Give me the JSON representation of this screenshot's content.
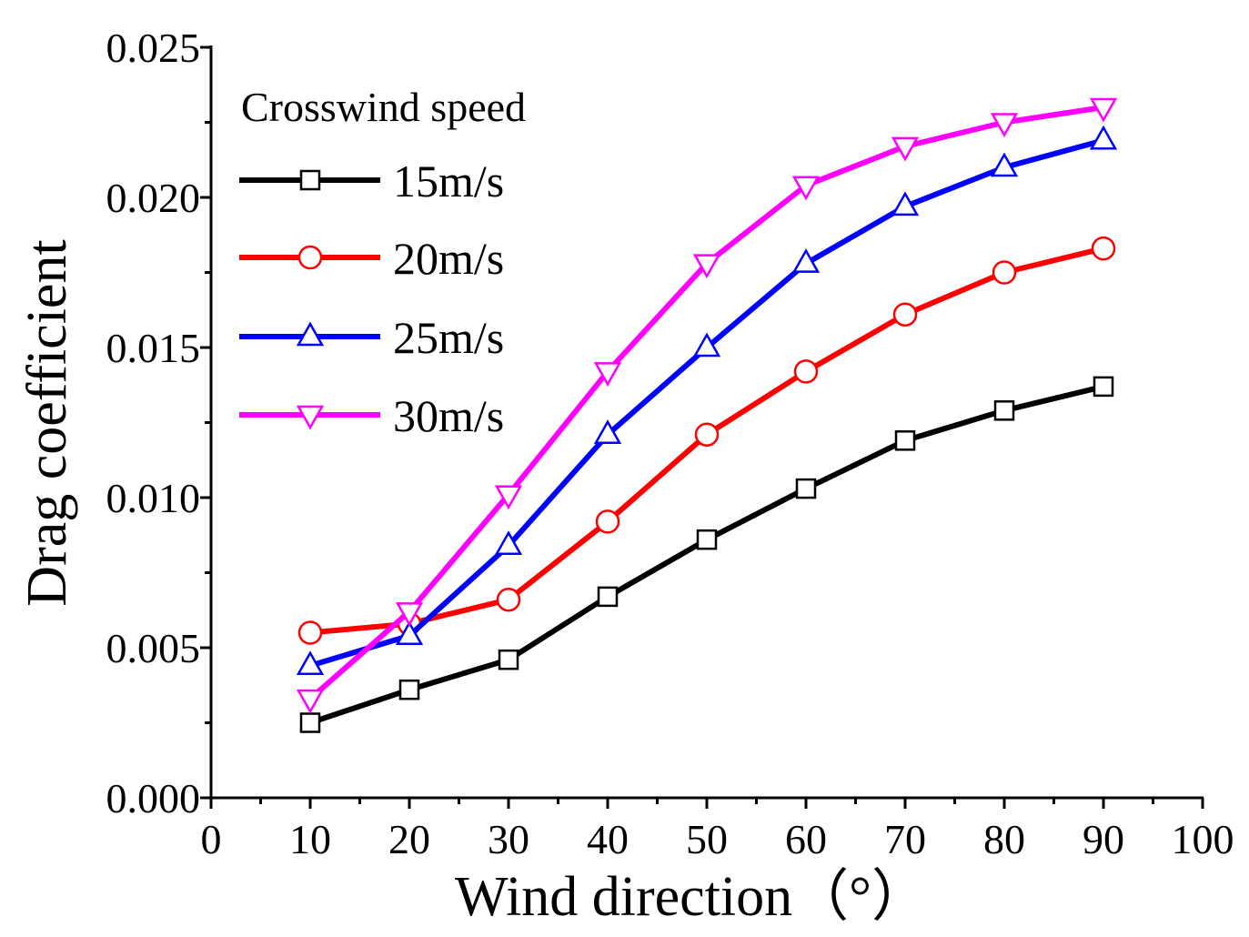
{
  "chart_data": {
    "type": "line",
    "title": "",
    "xlabel": "Wind direction（°）",
    "ylabel": "Drag coefficient",
    "xlim": [
      0,
      100
    ],
    "ylim": [
      0.0,
      0.025
    ],
    "x_ticks": [
      "0",
      "10",
      "20",
      "30",
      "40",
      "50",
      "60",
      "70",
      "80",
      "90",
      "100"
    ],
    "y_ticks": [
      "0.000",
      "0.005",
      "0.010",
      "0.015",
      "0.020",
      "0.025"
    ],
    "x": [
      10,
      20,
      30,
      40,
      50,
      60,
      70,
      80,
      90
    ],
    "legend_title": "Crosswind speed",
    "legend_position": "top-left",
    "grid": false,
    "series": [
      {
        "name": "15m/s",
        "color": "#000000",
        "marker": "square",
        "values": [
          0.0025,
          0.0036,
          0.0046,
          0.0067,
          0.0086,
          0.0103,
          0.0119,
          0.0129,
          0.0137
        ]
      },
      {
        "name": "20m/s",
        "color": "#ff0000",
        "marker": "circle",
        "values": [
          0.0055,
          0.0058,
          0.0066,
          0.0092,
          0.0121,
          0.0142,
          0.0161,
          0.0175,
          0.0183
        ]
      },
      {
        "name": "25m/s",
        "color": "#0000ff",
        "marker": "triangle-up",
        "values": [
          0.0044,
          0.0054,
          0.0084,
          0.0121,
          0.015,
          0.0178,
          0.0197,
          0.021,
          0.0219
        ]
      },
      {
        "name": "30m/s",
        "color": "#ff00ff",
        "marker": "triangle-down",
        "values": [
          0.0033,
          0.0062,
          0.0101,
          0.0142,
          0.0178,
          0.0204,
          0.0217,
          0.0225,
          0.023
        ]
      }
    ]
  }
}
